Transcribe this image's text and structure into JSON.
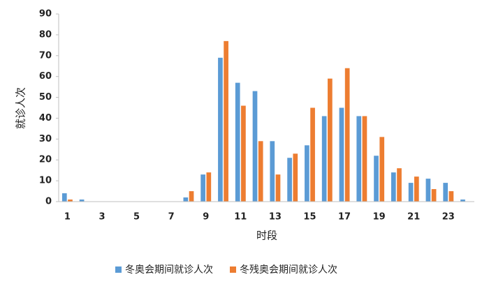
{
  "chart_data": {
    "type": "bar",
    "x_label": "时段",
    "y_label": "就诊人次",
    "categories": [
      "1",
      null,
      "3",
      null,
      "5",
      null,
      "7",
      null,
      "9",
      null,
      "11",
      null,
      "13",
      null,
      "15",
      null,
      "17",
      null,
      "19",
      null,
      "21",
      null,
      "23",
      null
    ],
    "series": [
      {
        "name": "冬奥会期间就诊人次",
        "color": "#5b9bd5",
        "values": [
          4,
          1,
          0,
          0,
          0,
          0,
          0,
          2,
          13,
          69,
          57,
          53,
          29,
          21,
          27,
          41,
          45,
          41,
          22,
          14,
          9,
          11,
          9,
          1
        ]
      },
      {
        "name": "冬残奥会期间就诊人次",
        "color": "#ed7d31",
        "values": [
          1,
          0,
          0,
          0,
          0,
          0,
          0,
          5,
          14,
          77,
          46,
          29,
          13,
          23,
          45,
          59,
          64,
          41,
          31,
          16,
          12,
          6,
          5,
          0
        ]
      }
    ],
    "ylim": [
      0,
      90
    ],
    "yticks": [
      0,
      10,
      20,
      30,
      40,
      50,
      60,
      70,
      80,
      90
    ],
    "grid": false,
    "legend": "bottom"
  }
}
